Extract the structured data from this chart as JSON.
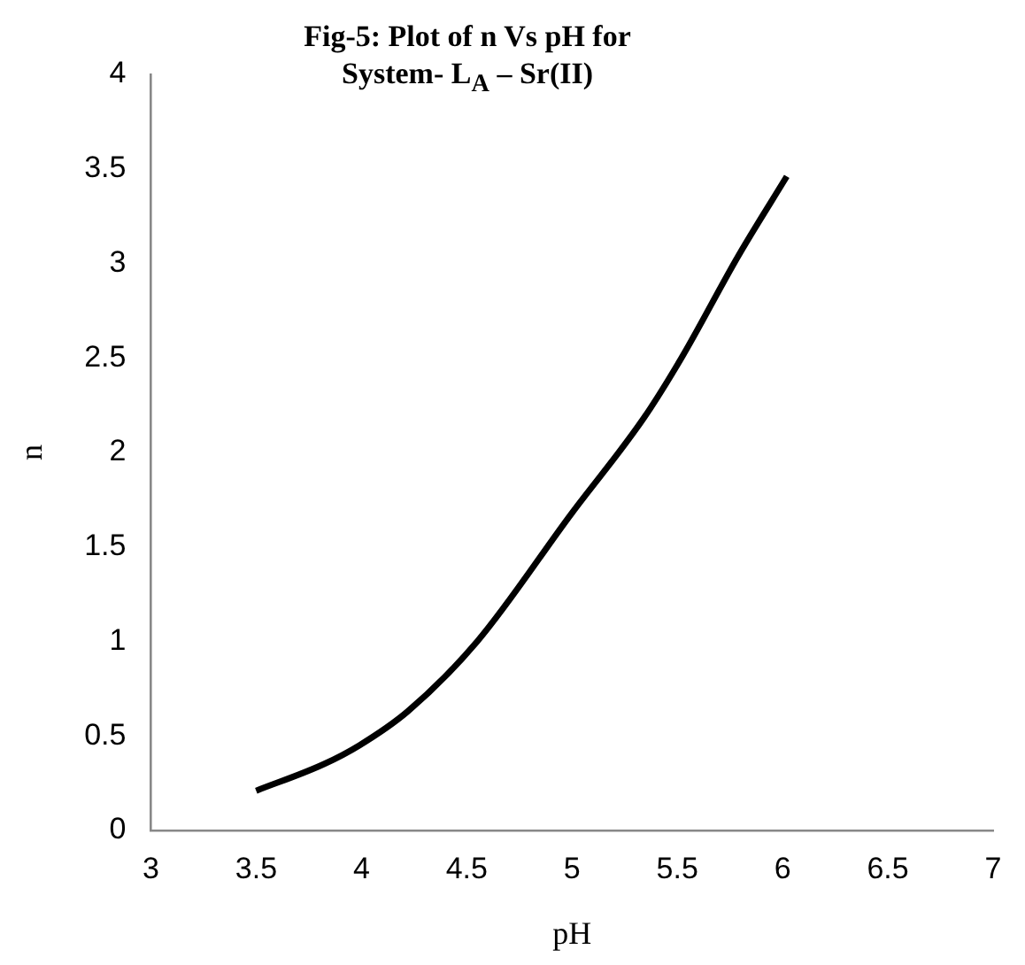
{
  "chart_data": {
    "type": "line",
    "title": [
      "Fig-5: Plot of n Vs pH  for",
      "System- L$_{A}$ – Sr(II)"
    ],
    "xlabel": "pH",
    "ylabel": "n",
    "x": [
      3.5,
      3.82,
      3.99,
      4.22,
      4.55,
      5.0,
      5.34,
      5.52,
      5.79,
      6.02
    ],
    "series": [
      {
        "color": "#000000",
        "values": [
          0.21,
          0.35,
          0.45,
          0.63,
          1.0,
          1.68,
          2.18,
          2.5,
          3.04,
          3.46
        ]
      }
    ],
    "xlim": [
      3,
      7
    ],
    "xticks": [
      3,
      3.5,
      4,
      4.5,
      5,
      5.5,
      6,
      6.5,
      7
    ],
    "ylim": [
      0,
      4
    ],
    "yticks": [
      0,
      0.5,
      1,
      1.5,
      2,
      2.5,
      3,
      3.5,
      4
    ],
    "grid": false,
    "legend": false,
    "marker": "none",
    "line_style": "solid"
  }
}
